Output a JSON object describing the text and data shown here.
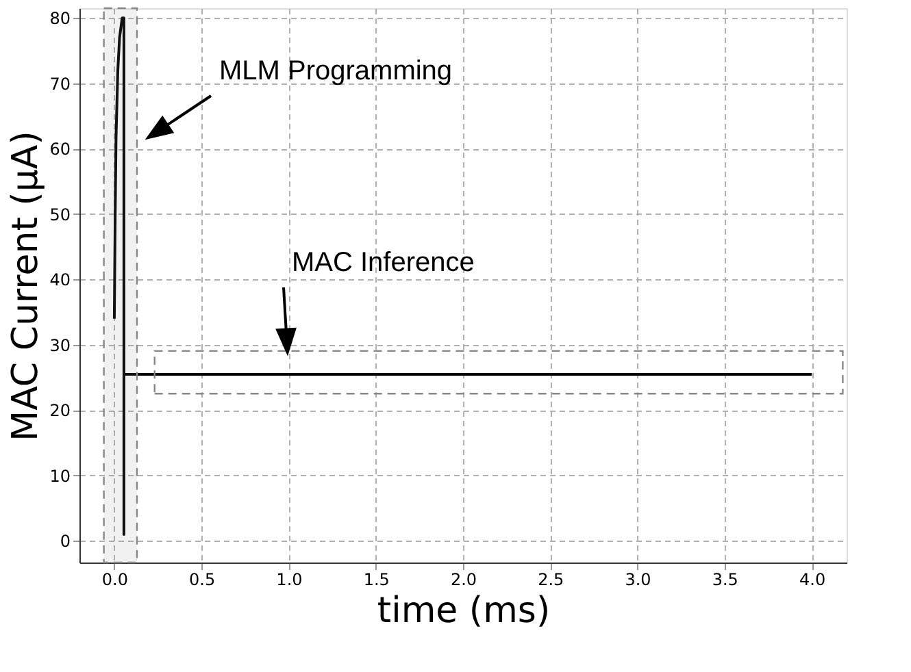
{
  "chart_data": {
    "type": "line",
    "xlabel": "time (ms)",
    "ylabel": "MAC Current (μA)",
    "series": [
      {
        "color": "#000000",
        "x": [
          0,
          0.005,
          0.01,
          0.02,
          0.03,
          0.045,
          0.055,
          0.055,
          0.055,
          4.0
        ],
        "values": [
          34,
          50,
          62,
          72,
          77,
          80,
          80,
          1,
          25.5,
          25.5
        ]
      }
    ],
    "xlim": [
      -0.2,
      4.2
    ],
    "ylim": [
      -3.3,
      81.5
    ],
    "xticks": [
      {
        "value": 0,
        "label": "0.0"
      },
      0.5,
      {
        "value": 1,
        "label": "1.0"
      },
      1.5,
      {
        "value": 2,
        "label": "2.0"
      },
      2.5,
      {
        "value": 3,
        "label": "3.0"
      },
      3.5,
      {
        "value": 4,
        "label": "4.0"
      }
    ],
    "yticks": [
      0,
      10,
      20,
      30,
      40,
      50,
      60,
      70,
      80
    ],
    "annotations": [
      "MLM Programming",
      "MAC Inference"
    ],
    "bands": [
      {
        "axis": "x",
        "from": -0.06,
        "to": 0.13,
        "color": "#888888"
      }
    ],
    "grid": true,
    "marker": "none",
    "line_style": "solid"
  }
}
